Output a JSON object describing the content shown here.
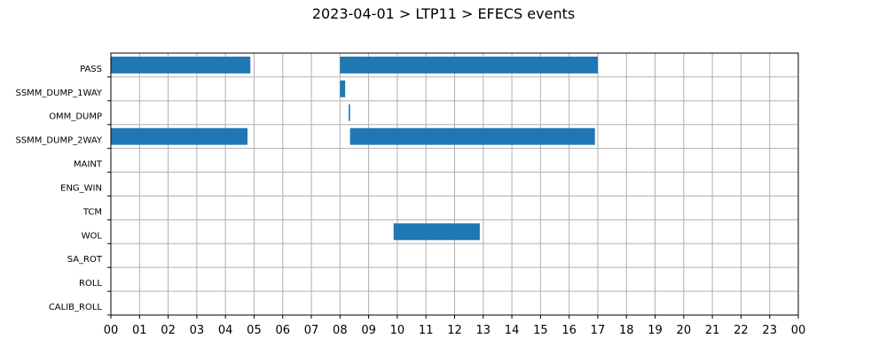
{
  "chart_data": {
    "type": "bar",
    "orientation": "horizontal-timeline",
    "title": "2023-04-01 > LTP11 > EFECS events",
    "xlabel": "",
    "ylabel": "",
    "xlim": [
      0,
      24
    ],
    "x_tick_labels": [
      "00",
      "01",
      "02",
      "03",
      "04",
      "05",
      "06",
      "07",
      "08",
      "09",
      "10",
      "11",
      "12",
      "13",
      "14",
      "15",
      "16",
      "17",
      "18",
      "19",
      "20",
      "21",
      "22",
      "23",
      "00"
    ],
    "categories": [
      "PASS",
      "SSMM_DUMP_1WAY",
      "OMM_DUMP",
      "SSMM_DUMP_2WAY",
      "MAINT",
      "ENG_WIN",
      "TCM",
      "WOL",
      "SA_ROT",
      "ROLL",
      "CALIB_ROLL"
    ],
    "grid": true,
    "bar_color": "#1f77b4",
    "series": [
      {
        "values": [
          {
            "category": "PASS",
            "start": 0.0,
            "end": 4.87
          },
          {
            "category": "PASS",
            "start": 8.0,
            "end": 17.0
          },
          {
            "category": "SSMM_DUMP_1WAY",
            "start": 8.0,
            "end": 8.18
          },
          {
            "category": "OMM_DUMP",
            "start": 8.3,
            "end": 8.35
          },
          {
            "category": "SSMM_DUMP_2WAY",
            "start": 0.0,
            "end": 4.77
          },
          {
            "category": "SSMM_DUMP_2WAY",
            "start": 8.35,
            "end": 16.9
          },
          {
            "category": "WOL",
            "start": 9.87,
            "end": 12.88
          }
        ]
      }
    ]
  }
}
